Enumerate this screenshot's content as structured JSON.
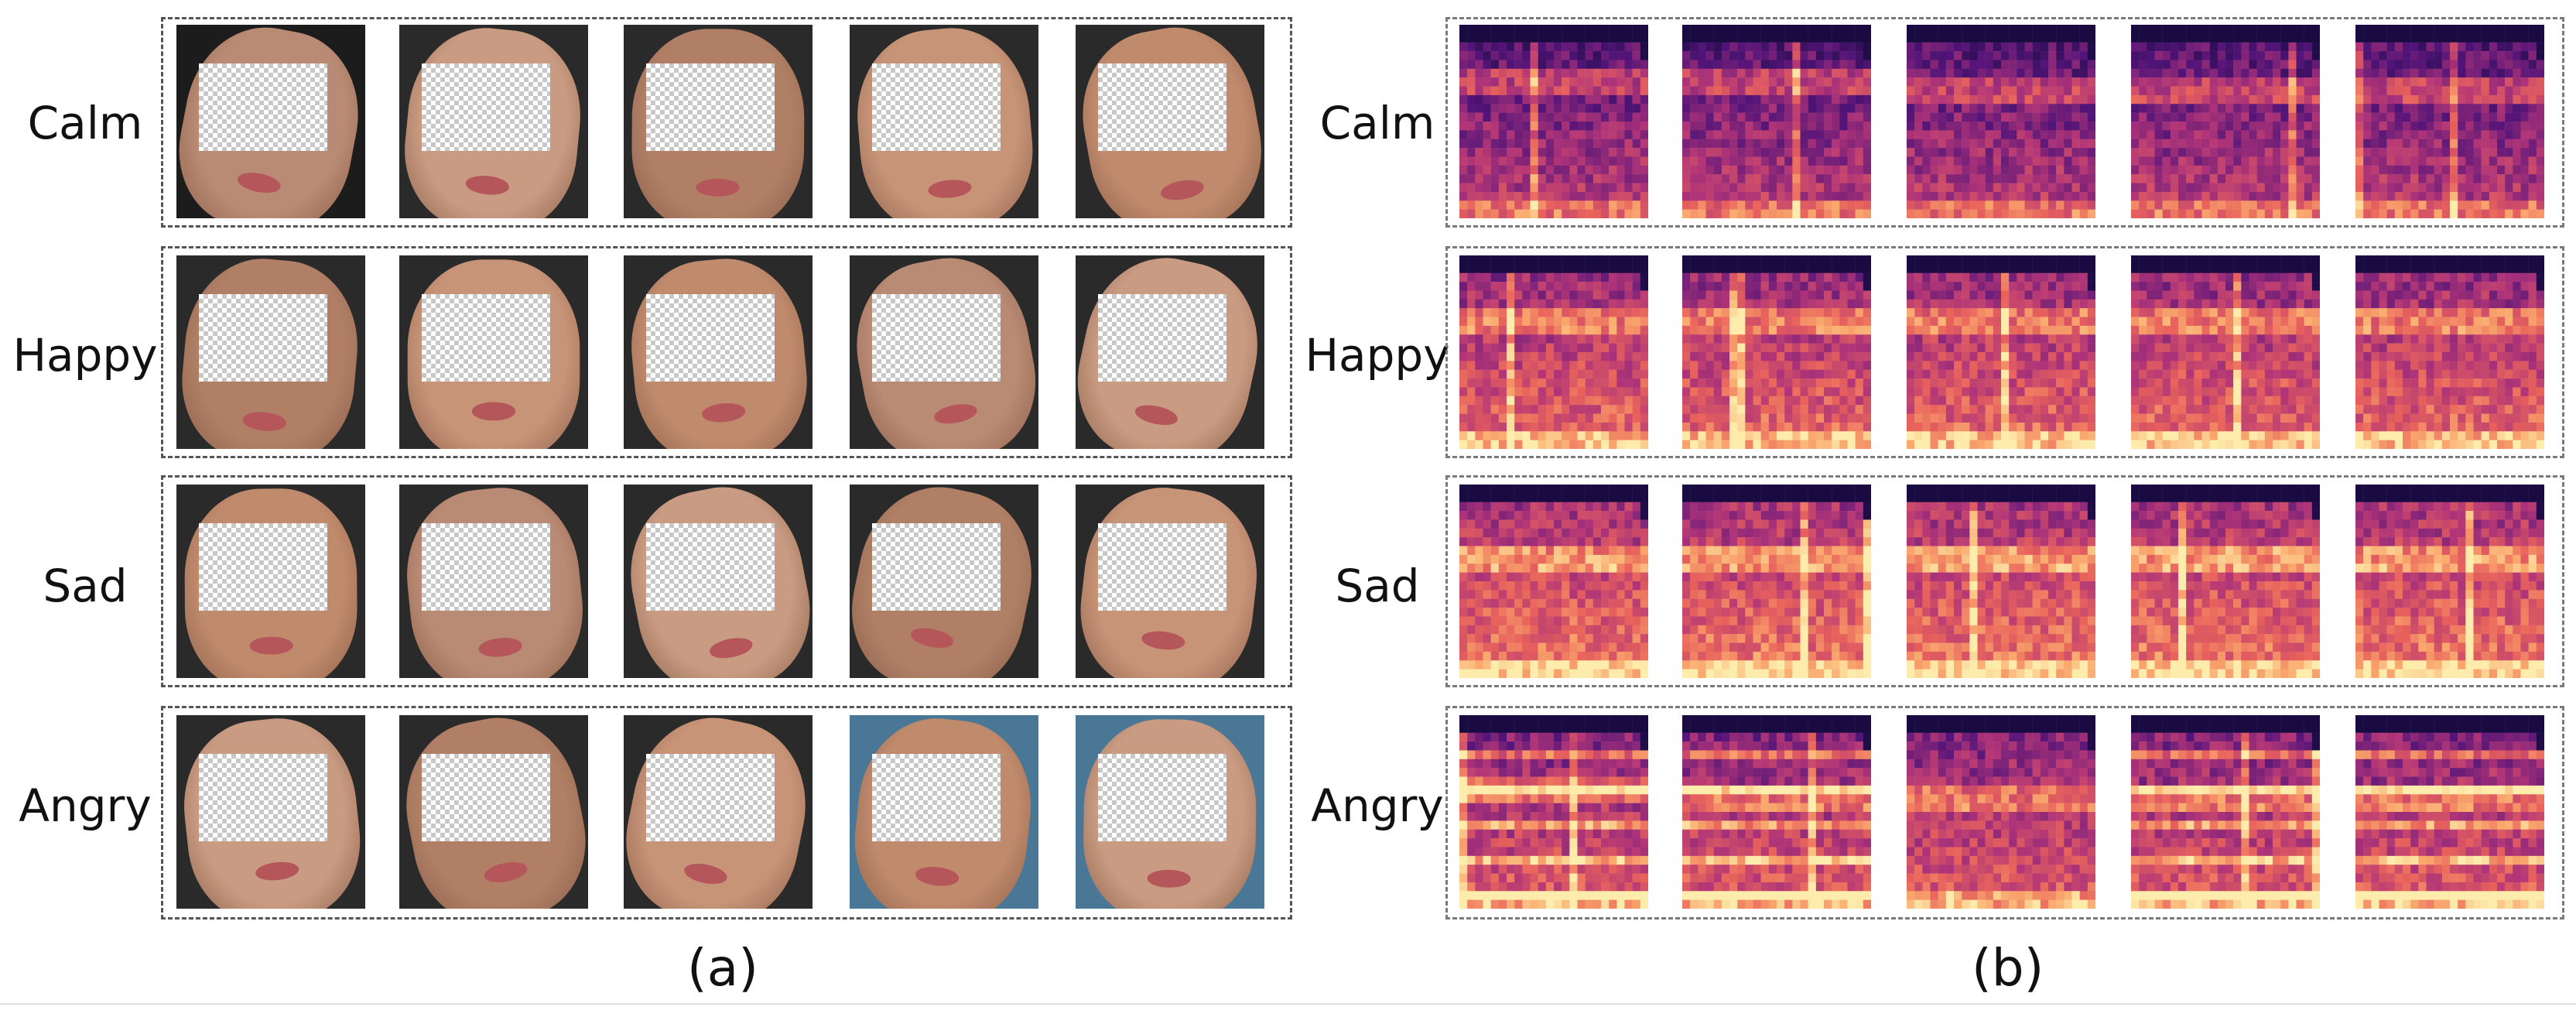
{
  "panel_a": {
    "caption": "(a)",
    "rows": [
      {
        "label": "Calm"
      },
      {
        "label": "Happy"
      },
      {
        "label": "Sad"
      },
      {
        "label": "Angry"
      }
    ]
  },
  "panel_b": {
    "caption": "(b)",
    "rows": [
      {
        "label": "Calm"
      },
      {
        "label": "Happy"
      },
      {
        "label": "Sad"
      },
      {
        "label": "Angry"
      }
    ]
  },
  "colors": {
    "spectrogram_low": "#2a0a5e",
    "spectrogram_mid": "#c23a6b",
    "spectrogram_high": "#fde8a8",
    "mask_check": "#c8c8c8",
    "skin": "#c58f72"
  }
}
